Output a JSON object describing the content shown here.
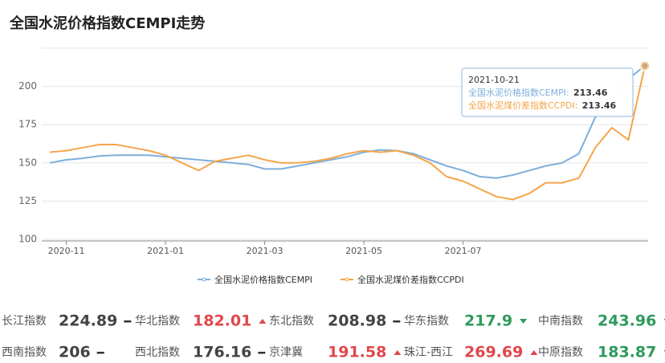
{
  "chart_data": {
    "type": "line",
    "title": "全国水泥价格指数CEMPI走势",
    "categories": [
      null,
      "2020-11",
      null,
      null,
      null,
      null,
      null,
      "2021-01",
      null,
      null,
      null,
      null,
      null,
      "2021-03",
      null,
      null,
      null,
      null,
      null,
      "2021-05",
      null,
      null,
      null,
      null,
      null,
      "2021-07",
      null,
      null,
      null,
      null,
      null,
      null,
      null,
      null,
      null,
      null,
      null
    ],
    "series": [
      {
        "name": "全国水泥价格指数CEMPI",
        "color": "#7eaedb",
        "values": [
          150,
          152,
          153,
          154.5,
          155,
          155,
          155,
          154,
          153,
          152,
          151,
          150,
          149,
          146,
          146,
          148,
          150,
          152,
          154,
          157,
          158.5,
          158,
          156,
          152,
          148,
          145,
          141,
          140,
          142,
          145,
          148,
          150,
          156,
          180,
          190,
          205,
          213.46
        ]
      },
      {
        "name": "全国水泥煤价差指数CCPDI",
        "color": "#f5a54a",
        "values": [
          157,
          158,
          160,
          162,
          162,
          160,
          158,
          155,
          150,
          145,
          151,
          153,
          155,
          152,
          150,
          150,
          151,
          153,
          156,
          158,
          157,
          158,
          155,
          150,
          141,
          138,
          133,
          128,
          126,
          130,
          137,
          137,
          140,
          160,
          173,
          165,
          213.46
        ]
      }
    ],
    "ylim": [
      100,
      225
    ],
    "yticks": [
      100,
      125,
      150,
      175,
      200
    ],
    "grid": true,
    "tooltip_date": "2021-10-21"
  },
  "indices": [
    {
      "name": "长江指数",
      "value": 224.89,
      "trend": "flat"
    },
    {
      "name": "华北指数",
      "value": 182.01,
      "trend": "up"
    },
    {
      "name": "东北指数",
      "value": 208.98,
      "trend": "flat"
    },
    {
      "name": "华东指数",
      "value": 217.9,
      "trend": "down"
    },
    {
      "name": "中南指数",
      "value": 243.96,
      "trend": "down"
    },
    {
      "name": "西南指数",
      "value": 206,
      "trend": "flat"
    },
    {
      "name": "西北指数",
      "value": 176.16,
      "trend": "flat"
    },
    {
      "name": "京津冀",
      "value": 191.58,
      "trend": "up"
    },
    {
      "name": "珠江-西江",
      "value": 269.69,
      "trend": "up"
    },
    {
      "name": "中原指数",
      "value": 183.87,
      "trend": "down"
    }
  ]
}
